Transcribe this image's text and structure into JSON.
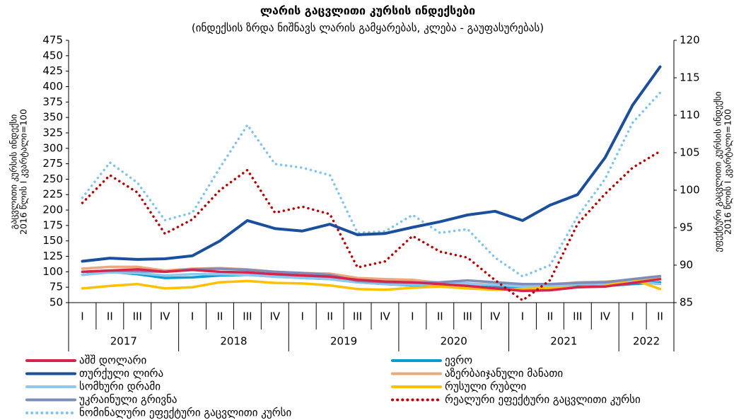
{
  "chart_data": {
    "type": "line",
    "title": "ლარის გაცვლითი კურსის ინდექსები",
    "subtitle": "(ინდექსის ზრდა ნიშნავს ლარის გამყარებას, კლება - გაუფასურებას)",
    "y_label": [
      "გაცვლითი კურსის ინდექსი",
      "2016 წლის I კვარტალი=100"
    ],
    "y2_label": [
      "ეფექტური გაცვლითი კურსის ინდექსი",
      "2016 წლის I კვარტალი=100"
    ],
    "categories": [
      "I",
      "II",
      "III",
      "IV",
      "I",
      "II",
      "III",
      "IV",
      "I",
      "II",
      "III",
      "IV",
      "I",
      "II",
      "III",
      "IV",
      "I",
      "II",
      "III",
      "IV",
      "I",
      "II"
    ],
    "years": [
      "2017",
      "2018",
      "2019",
      "2020",
      "2021",
      "2022"
    ],
    "ylim": [
      50,
      475
    ],
    "yticks": [
      50,
      75,
      100,
      125,
      150,
      175,
      200,
      225,
      250,
      275,
      300,
      325,
      350,
      375,
      400,
      425,
      450,
      475
    ],
    "y2lim": [
      85,
      120
    ],
    "y2ticks": [
      85,
      90,
      95,
      100,
      105,
      110,
      115,
      120
    ],
    "series": [
      {
        "name": "აშშ დოლარი",
        "color": "#d6254d",
        "style": "solid",
        "values": [
          100,
          102,
          104,
          100,
          103,
          100,
          99,
          96,
          94,
          92,
          87,
          84,
          83,
          80,
          77,
          73,
          69,
          70,
          75,
          76,
          82,
          88
        ]
      },
      {
        "name": "ევრო",
        "color": "#0b9bd0",
        "style": "solid",
        "values": [
          95,
          100,
          96,
          90,
          91,
          94,
          95,
          92,
          90,
          88,
          83,
          80,
          78,
          80,
          81,
          77,
          72,
          72,
          76,
          77,
          80,
          83
        ]
      },
      {
        "name": "თურქული ლირა",
        "color": "#1a4f9e",
        "style": "solid",
        "values": [
          117,
          122,
          120,
          121,
          126,
          150,
          183,
          170,
          166,
          177,
          160,
          162,
          172,
          181,
          192,
          198,
          183,
          208,
          225,
          285,
          370,
          432
        ]
      },
      {
        "name": "აზერბაიჯანული მანათი",
        "color": "#eaa97c",
        "style": "solid",
        "values": [
          105,
          108,
          108,
          102,
          105,
          106,
          104,
          100,
          98,
          97,
          90,
          88,
          87,
          82,
          81,
          79,
          78,
          79,
          83,
          84,
          86,
          90
        ]
      },
      {
        "name": "სომხური დრამი",
        "color": "#8fc8ef",
        "style": "solid",
        "values": [
          95,
          99,
          98,
          94,
          96,
          96,
          95,
          92,
          90,
          88,
          83,
          80,
          79,
          80,
          80,
          79,
          76,
          76,
          80,
          81,
          84,
          80
        ]
      },
      {
        "name": "რუსული რუბლი",
        "color": "#ffc000",
        "style": "solid",
        "values": [
          73,
          77,
          80,
          73,
          75,
          83,
          85,
          82,
          81,
          78,
          72,
          71,
          74,
          76,
          73,
          71,
          72,
          74,
          75,
          77,
          88,
          72
        ]
      },
      {
        "name": "უკრაინული გრივნა",
        "color": "#7c8db9",
        "style": "solid",
        "values": [
          100,
          102,
          101,
          100,
          104,
          105,
          103,
          100,
          98,
          95,
          85,
          83,
          82,
          83,
          86,
          83,
          80,
          80,
          82,
          83,
          88,
          93
        ]
      },
      {
        "name": "რეალური ეფექტური გაცვლითი კურსი",
        "color": "#c00000",
        "style": "dotted",
        "axis": "y2",
        "values": [
          98.3,
          102,
          99.7,
          94.2,
          96.1,
          100,
          102.7,
          97,
          97.8,
          96.8,
          89.7,
          90.5,
          93.9,
          91.8,
          91,
          88,
          85.3,
          88,
          95.5,
          99.5,
          103,
          105.2
        ]
      },
      {
        "name": "ნომინალური ეფექტური გაცვლითი კურსი",
        "color": "#7fc4ea",
        "style": "dotted",
        "axis": "y2",
        "values": [
          99,
          103.7,
          101,
          96,
          97,
          103,
          108.7,
          103.5,
          103,
          102,
          94.3,
          94.5,
          96.7,
          94.3,
          94.8,
          91,
          88.5,
          90,
          96.5,
          101.5,
          109,
          113
        ]
      }
    ]
  }
}
